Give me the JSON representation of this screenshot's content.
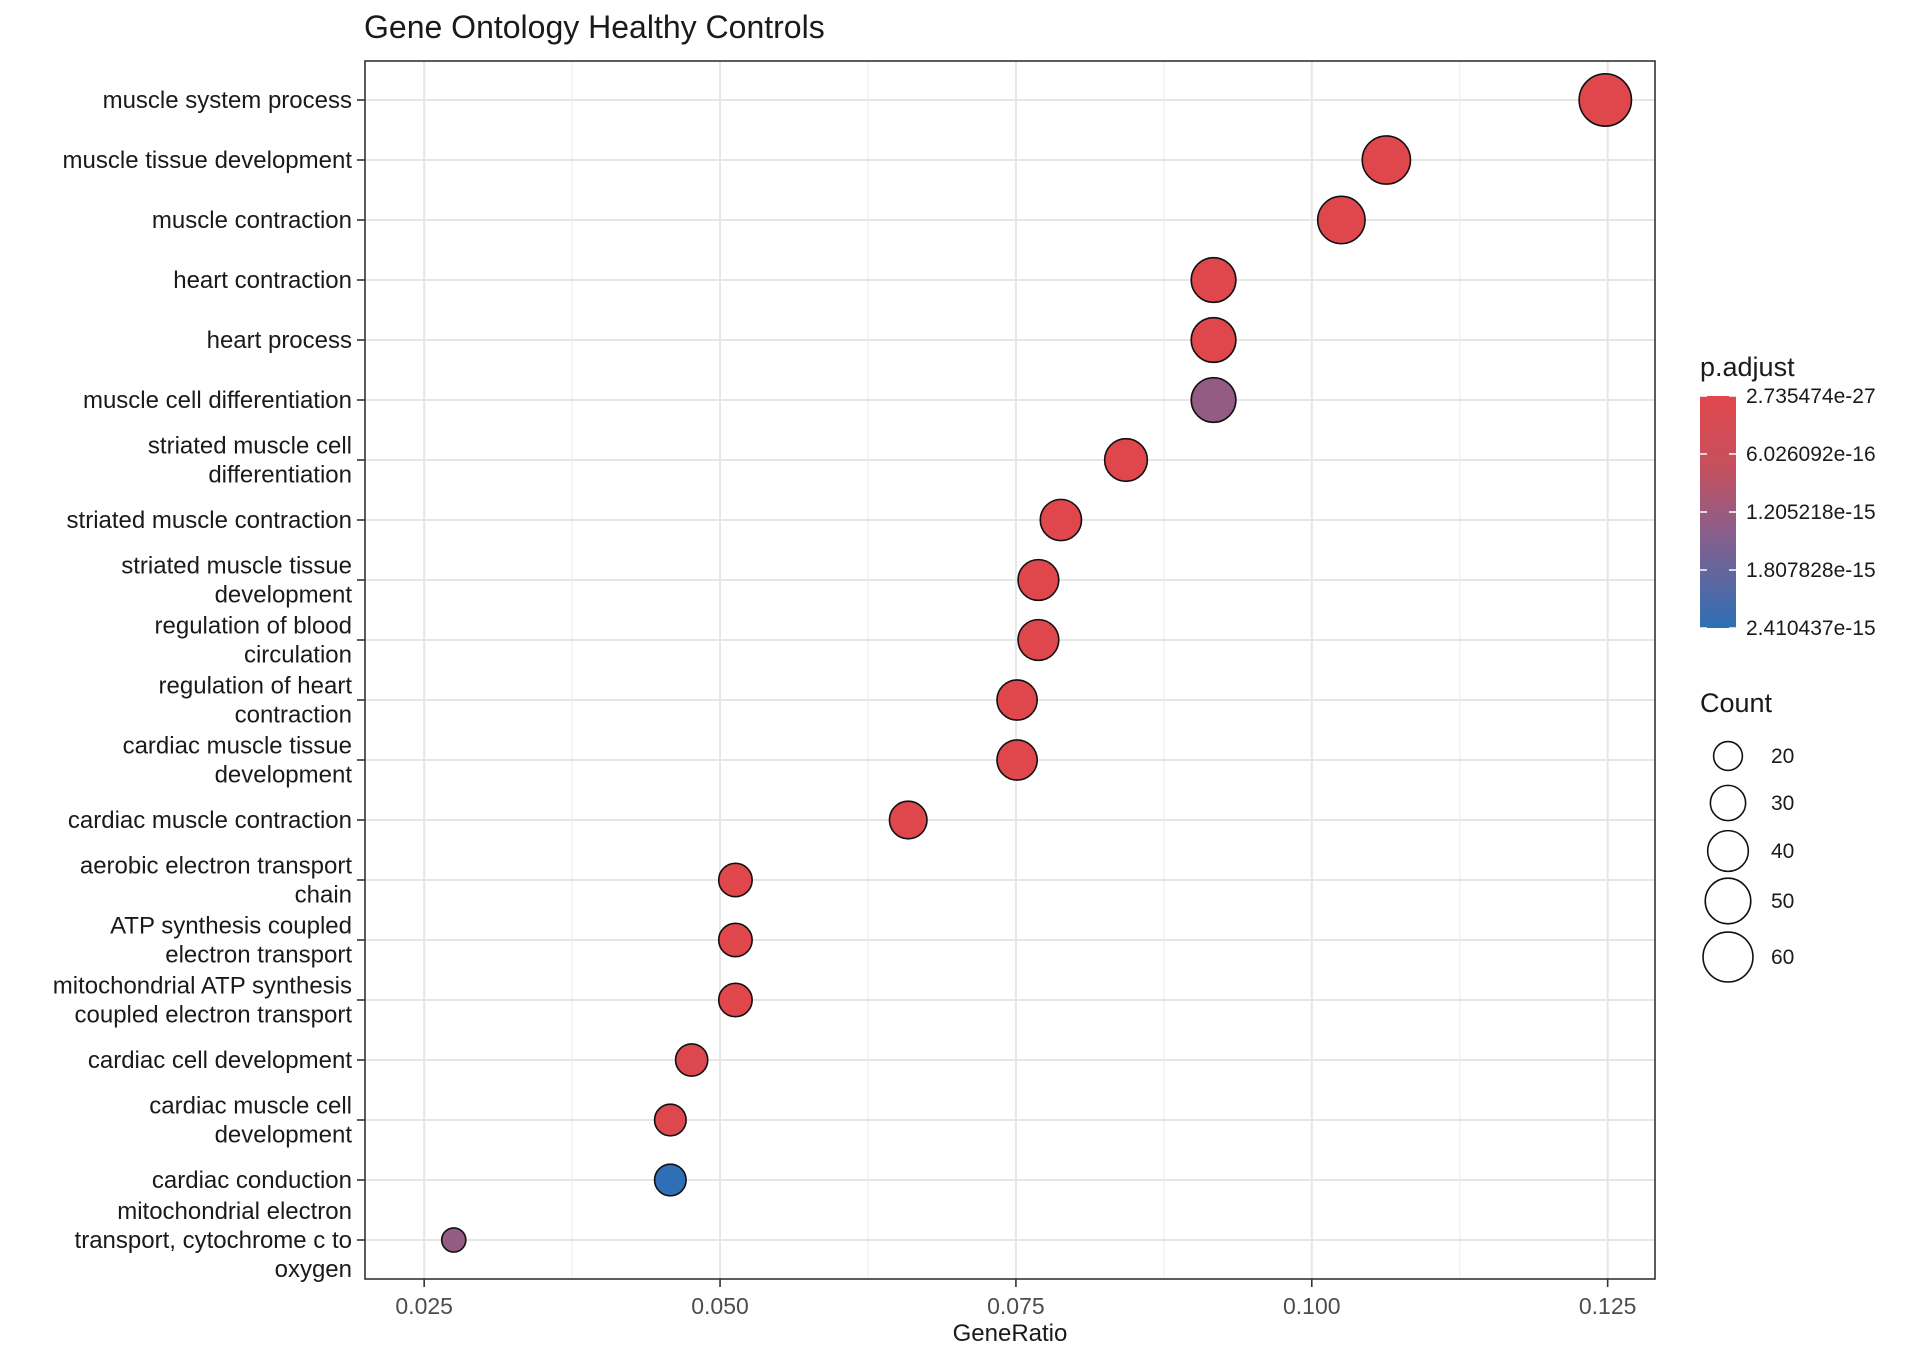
{
  "chart_data": {
    "type": "scatter",
    "title": "Gene Ontology Healthy Controls",
    "xlabel": "GeneRatio",
    "ylabel": "",
    "xlim": [
      0.02,
      0.129
    ],
    "xticks": [
      0.025,
      0.05,
      0.075,
      0.1,
      0.125
    ],
    "xtick_labels": [
      "0.025",
      "0.050",
      "0.075",
      "0.100",
      "0.125"
    ],
    "grid": true,
    "legend_position": "right",
    "color_legend": {
      "title": "p.adjust",
      "labels": [
        "2.735474e-27",
        "6.026092e-16",
        "1.205218e-15",
        "1.807828e-15",
        "2.410437e-15"
      ],
      "low_color": "#e0474c",
      "high_color": "#2e6fb5"
    },
    "size_legend": {
      "title": "Count",
      "values": [
        20,
        30,
        40,
        50,
        60
      ],
      "labels": [
        "20",
        "30",
        "40",
        "50",
        "60"
      ]
    },
    "points": [
      {
        "term": [
          "muscle system process"
        ],
        "gene_ratio": 0.1248,
        "count": 66,
        "padj": 2.7e-27
      },
      {
        "term": [
          "muscle tissue development"
        ],
        "gene_ratio": 0.1063,
        "count": 56,
        "padj": 1e-20
      },
      {
        "term": [
          "muscle contraction"
        ],
        "gene_ratio": 0.1025,
        "count": 54,
        "padj": 1e-20
      },
      {
        "term": [
          "heart contraction"
        ],
        "gene_ratio": 0.0917,
        "count": 48,
        "padj": 1e-18
      },
      {
        "term": [
          "heart process"
        ],
        "gene_ratio": 0.0917,
        "count": 48,
        "padj": 1e-18
      },
      {
        "term": [
          "muscle cell differentiation"
        ],
        "gene_ratio": 0.0917,
        "count": 48,
        "padj": 1.3e-15
      },
      {
        "term": [
          "striated muscle cell",
          "differentiation"
        ],
        "gene_ratio": 0.0843,
        "count": 44,
        "padj": 1e-17
      },
      {
        "term": [
          "striated muscle contraction"
        ],
        "gene_ratio": 0.0788,
        "count": 41,
        "padj": 1e-18
      },
      {
        "term": [
          "striated muscle tissue",
          "development"
        ],
        "gene_ratio": 0.0769,
        "count": 40,
        "padj": 1e-17
      },
      {
        "term": [
          "regulation of blood",
          "circulation"
        ],
        "gene_ratio": 0.0769,
        "count": 40,
        "padj": 1e-17
      },
      {
        "term": [
          "regulation of heart",
          "contraction"
        ],
        "gene_ratio": 0.0751,
        "count": 39,
        "padj": 1e-17
      },
      {
        "term": [
          "cardiac muscle tissue",
          "development"
        ],
        "gene_ratio": 0.0751,
        "count": 39,
        "padj": 1e-17
      },
      {
        "term": [
          "cardiac muscle contraction"
        ],
        "gene_ratio": 0.0659,
        "count": 34,
        "padj": 1e-17
      },
      {
        "term": [
          "aerobic electron transport",
          "chain"
        ],
        "gene_ratio": 0.0513,
        "count": 27,
        "padj": 1e-17
      },
      {
        "term": [
          "ATP synthesis coupled",
          "electron transport"
        ],
        "gene_ratio": 0.0513,
        "count": 27,
        "padj": 1e-17
      },
      {
        "term": [
          "mitochondrial ATP synthesis",
          "coupled electron transport"
        ],
        "gene_ratio": 0.0513,
        "count": 27,
        "padj": 1e-17
      },
      {
        "term": [
          "cardiac cell development"
        ],
        "gene_ratio": 0.0476,
        "count": 25,
        "padj": 1e-16
      },
      {
        "term": [
          "cardiac muscle cell",
          "development"
        ],
        "gene_ratio": 0.0458,
        "count": 24,
        "padj": 1e-16
      },
      {
        "term": [
          "cardiac conduction"
        ],
        "gene_ratio": 0.0458,
        "count": 24,
        "padj": 2.41e-15
      },
      {
        "term": [
          "mitochondrial electron",
          "transport, cytochrome c to",
          "oxygen"
        ],
        "gene_ratio": 0.0275,
        "count": 14,
        "padj": 1.3e-15
      }
    ]
  }
}
